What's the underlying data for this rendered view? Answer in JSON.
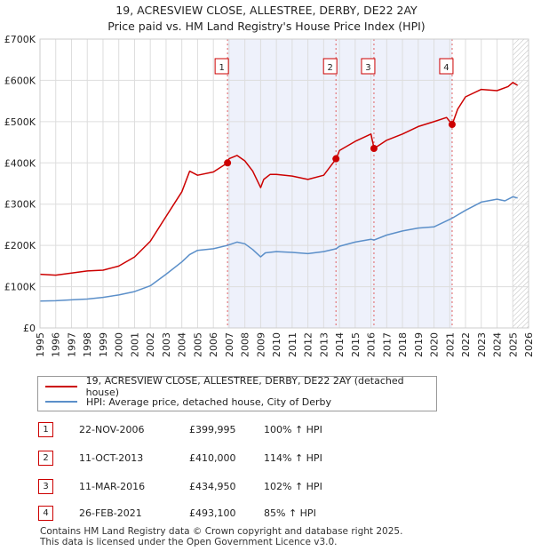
{
  "header": {
    "title": "19, ACRESVIEW CLOSE, ALLESTREE, DERBY, DE22 2AY",
    "subtitle": "Price paid vs. HM Land Registry's House Price Index (HPI)"
  },
  "legend": {
    "items": [
      {
        "label": "19, ACRESVIEW CLOSE, ALLESTREE, DERBY, DE22 2AY (detached house)",
        "color": "#cc0000"
      },
      {
        "label": "HPI: Average price, detached house, City of Derby",
        "color": "#5b8fc9"
      }
    ]
  },
  "sales": [
    {
      "num": "1",
      "date": "22-NOV-2006",
      "price": "£399,995",
      "hpi": "100% ↑ HPI"
    },
    {
      "num": "2",
      "date": "11-OCT-2013",
      "price": "£410,000",
      "hpi": "114% ↑ HPI"
    },
    {
      "num": "3",
      "date": "11-MAR-2016",
      "price": "£434,950",
      "hpi": "102% ↑ HPI"
    },
    {
      "num": "4",
      "date": "26-FEB-2021",
      "price": "£493,100",
      "hpi": "85% ↑ HPI"
    }
  ],
  "footer": {
    "line1": "Contains HM Land Registry data © Crown copyright and database right 2025.",
    "line2": "This data is licensed under the Open Government Licence v3.0."
  },
  "chart_data": {
    "type": "line",
    "title": "19, ACRESVIEW CLOSE, ALLESTREE, DERBY, DE22 2AY",
    "subtitle": "Price paid vs. HM Land Registry's House Price Index (HPI)",
    "xlim": [
      1995,
      2026
    ],
    "ylim": [
      0,
      700000
    ],
    "x_ticks": [
      "1995",
      "1996",
      "1997",
      "1998",
      "1999",
      "2000",
      "2001",
      "2002",
      "2003",
      "2004",
      "2005",
      "2006",
      "2007",
      "2008",
      "2009",
      "2010",
      "2011",
      "2012",
      "2013",
      "2014",
      "2015",
      "2016",
      "2017",
      "2018",
      "2019",
      "2020",
      "2021",
      "2022",
      "2023",
      "2024",
      "2025",
      "2026"
    ],
    "y_ticks": [
      {
        "value": 0,
        "label": "£0"
      },
      {
        "value": 100000,
        "label": "£100K"
      },
      {
        "value": 200000,
        "label": "£200K"
      },
      {
        "value": 300000,
        "label": "£300K"
      },
      {
        "value": 400000,
        "label": "£400K"
      },
      {
        "value": 500000,
        "label": "£500K"
      },
      {
        "value": 600000,
        "label": "£600K"
      },
      {
        "value": 700000,
        "label": "£700K"
      }
    ],
    "shaded_region": [
      2006.9,
      2021.15
    ],
    "future_hatch_from": 2025.0,
    "series": [
      {
        "name": "19, ACRESVIEW CLOSE, ALLESTREE, DERBY, DE22 2AY (detached house)",
        "color": "#cc0000",
        "x": [
          1995,
          1996,
          1997,
          1998,
          1999,
          2000,
          2001,
          2002,
          2003,
          2003.5,
          2004,
          2004.5,
          2005,
          2006,
          2006.9,
          2007,
          2007.5,
          2008,
          2008.5,
          2009,
          2009.2,
          2009.6,
          2010,
          2011,
          2012,
          2013,
          2013.8,
          2014,
          2015,
          2016,
          2016.2,
          2017,
          2018,
          2019,
          2020,
          2020.8,
          2021.15,
          2021.5,
          2022,
          2023,
          2024,
          2024.7,
          2025,
          2025.3
        ],
        "y": [
          130000,
          128000,
          133000,
          138000,
          140000,
          150000,
          172000,
          210000,
          270000,
          300000,
          330000,
          380000,
          370000,
          378000,
          399995,
          410000,
          418000,
          405000,
          380000,
          340000,
          360000,
          372000,
          372000,
          368000,
          360000,
          370000,
          410000,
          430000,
          452000,
          470000,
          434950,
          455000,
          470000,
          488000,
          500000,
          510000,
          493100,
          530000,
          560000,
          578000,
          575000,
          585000,
          595000,
          588000
        ]
      },
      {
        "name": "HPI: Average price, detached house, City of Derby",
        "color": "#5b8fc9",
        "x": [
          1995,
          1996,
          1997,
          1998,
          1999,
          2000,
          2001,
          2002,
          2003,
          2004,
          2004.5,
          2005,
          2006,
          2006.9,
          2007.5,
          2008,
          2008.5,
          2009,
          2009.3,
          2010,
          2011,
          2012,
          2013,
          2013.8,
          2014,
          2015,
          2016,
          2016.2,
          2017,
          2018,
          2019,
          2020,
          2021.15,
          2022,
          2023,
          2024,
          2024.5,
          2025,
          2025.3
        ],
        "y": [
          65000,
          66000,
          68000,
          70000,
          74000,
          80000,
          88000,
          102000,
          130000,
          160000,
          178000,
          188000,
          192000,
          200000,
          208000,
          204000,
          190000,
          172000,
          182000,
          185000,
          183000,
          180000,
          185000,
          192000,
          198000,
          208000,
          215000,
          213000,
          225000,
          235000,
          242000,
          245000,
          266000,
          285000,
          305000,
          312000,
          308000,
          318000,
          315000
        ]
      }
    ],
    "markers": [
      {
        "num": "1",
        "x": 2006.9,
        "y": 399995
      },
      {
        "num": "2",
        "x": 2013.78,
        "y": 410000
      },
      {
        "num": "3",
        "x": 2016.19,
        "y": 434950
      },
      {
        "num": "4",
        "x": 2021.15,
        "y": 493100
      }
    ]
  }
}
